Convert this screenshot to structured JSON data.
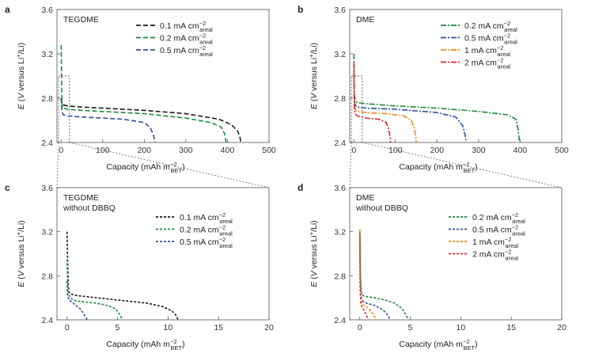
{
  "colors": {
    "black": "#1a1a1a",
    "green": "#1a8a3a",
    "blue": "#2f4f9e",
    "orange": "#f08a1c",
    "red": "#e0262e",
    "zoom_box": "#666666"
  },
  "axis_labels": {
    "y": "E (V versus Li⁺/Li)",
    "x_ab": "Capacity (mAh m⁻²BET)",
    "x_cd": "Capacity (mAh m⁻²BET)"
  },
  "chart_data": [
    {
      "panel": "a",
      "type": "line",
      "title": "TEGDME",
      "xlabel": "Capacity (mAh m-2 BET)",
      "ylabel": "E (V versus Li+/Li)",
      "xlim": [
        -10,
        500
      ],
      "ylim": [
        2.4,
        3.6
      ],
      "xticks": [
        0,
        100,
        200,
        300,
        400,
        500
      ],
      "yticks": [
        2.4,
        2.8,
        3.2,
        3.6
      ],
      "xtick_labels": [
        "0",
        "100",
        "200",
        "300",
        "400",
        "500"
      ],
      "ytick_labels": [
        "2.4",
        "2.8",
        "3.2",
        "3.6"
      ],
      "legend_position": "top-right",
      "series": [
        {
          "name": "0.1 mA cm-2 areal",
          "label_main": "0.1 mA cm",
          "label_sup": "−2",
          "label_sub": "areal",
          "color_key": "black",
          "dash": "long",
          "x": [
            0,
            2,
            5,
            15,
            50,
            100,
            200,
            300,
            380,
            410,
            425,
            430,
            431.5,
            432
          ],
          "y": [
            2.8,
            2.76,
            2.74,
            2.73,
            2.72,
            2.71,
            2.69,
            2.66,
            2.61,
            2.56,
            2.5,
            2.45,
            2.42,
            2.4
          ]
        },
        {
          "name": "0.2 mA cm-2 areal",
          "label_main": "0.2 mA cm",
          "label_sup": "−2",
          "label_sub": "areal",
          "color_key": "green",
          "dash": "long",
          "x": [
            0,
            1,
            2,
            5,
            15,
            50,
            100,
            200,
            300,
            360,
            385,
            393,
            396,
            397
          ],
          "y": [
            3.28,
            3.0,
            2.75,
            2.71,
            2.7,
            2.69,
            2.68,
            2.66,
            2.62,
            2.58,
            2.54,
            2.48,
            2.42,
            2.4
          ]
        },
        {
          "name": "0.5 mA cm-2 areal",
          "label_main": "0.5 mA cm",
          "label_sup": "−2",
          "label_sub": "areal",
          "color_key": "blue",
          "dash": "long",
          "x": [
            0,
            2,
            5,
            15,
            50,
            100,
            150,
            200,
            215,
            222,
            225,
            226
          ],
          "y": [
            2.8,
            2.68,
            2.65,
            2.64,
            2.63,
            2.62,
            2.61,
            2.58,
            2.53,
            2.47,
            2.42,
            2.4
          ]
        }
      ]
    },
    {
      "panel": "b",
      "type": "line",
      "title": "DME",
      "xlabel": "Capacity (mAh m-2 BET)",
      "ylabel": "E (V versus Li+/Li)",
      "xlim": [
        -10,
        500
      ],
      "ylim": [
        2.4,
        3.6
      ],
      "xticks": [
        0,
        100,
        200,
        300,
        400,
        500
      ],
      "yticks": [
        2.4,
        2.8,
        3.2,
        3.6
      ],
      "xtick_labels": [
        "0",
        "100",
        "200",
        "300",
        "400",
        "500"
      ],
      "ytick_labels": [
        "2.4",
        "2.8",
        "3.2",
        "3.6"
      ],
      "legend_position": "top-right",
      "series": [
        {
          "name": "0.2 mA cm-2 areal",
          "label_main": "0.2 mA cm",
          "label_sup": "−2",
          "label_sub": "areal",
          "color_key": "green",
          "dash": "dashdot",
          "x": [
            0,
            1,
            3,
            8,
            30,
            100,
            200,
            300,
            370,
            390,
            395,
            397,
            398
          ],
          "y": [
            3.2,
            2.85,
            2.78,
            2.76,
            2.75,
            2.73,
            2.71,
            2.68,
            2.65,
            2.61,
            2.52,
            2.45,
            2.4
          ]
        },
        {
          "name": "0.5 mA cm-2 areal",
          "label_main": "0.5 mA cm",
          "label_sup": "−2",
          "label_sub": "areal",
          "color_key": "blue",
          "dash": "dashdot",
          "x": [
            0,
            1,
            3,
            8,
            30,
            100,
            200,
            245,
            262,
            268,
            270
          ],
          "y": [
            3.05,
            2.8,
            2.74,
            2.72,
            2.71,
            2.7,
            2.67,
            2.63,
            2.55,
            2.46,
            2.4
          ]
        },
        {
          "name": "1 mA cm-2 areal",
          "label_main": "1 mA cm",
          "label_sup": "−2",
          "label_sub": "areal",
          "color_key": "orange",
          "dash": "dashdot",
          "x": [
            0,
            1,
            3,
            8,
            30,
            80,
            120,
            138,
            146,
            149,
            150
          ],
          "y": [
            3.1,
            2.76,
            2.7,
            2.68,
            2.67,
            2.66,
            2.64,
            2.6,
            2.52,
            2.44,
            2.4
          ]
        },
        {
          "name": "2 mA cm-2 areal",
          "label_main": "2 mA cm",
          "label_sup": "−2",
          "label_sub": "areal",
          "color_key": "red",
          "dash": "dashdot",
          "x": [
            0,
            1,
            3,
            8,
            30,
            60,
            78,
            84,
            87,
            88
          ],
          "y": [
            3.12,
            2.72,
            2.66,
            2.64,
            2.62,
            2.61,
            2.58,
            2.52,
            2.45,
            2.4
          ]
        }
      ]
    },
    {
      "panel": "c",
      "type": "line",
      "title": "TEGDME",
      "subtitle": "without DBBQ",
      "xlabel": "Capacity (mAh m-2 BET)",
      "ylabel": "E (V versus Li+/Li)",
      "xlim": [
        -1,
        20
      ],
      "ylim": [
        2.4,
        3.6
      ],
      "xticks": [
        0,
        5,
        10,
        15,
        20
      ],
      "yticks": [
        2.4,
        2.8,
        3.2,
        3.6
      ],
      "xtick_labels": [
        "0",
        "5",
        "10",
        "15",
        "20"
      ],
      "ytick_labels": [
        "2.4",
        "2.8",
        "3.2",
        "3.6"
      ],
      "legend_position": "top-right",
      "series": [
        {
          "name": "0.1 mA cm-2 areal",
          "label_main": "0.1 mA cm",
          "label_sup": "−2",
          "label_sub": "areal",
          "color_key": "black",
          "dash": "short",
          "x": [
            0,
            0.05,
            0.12,
            0.2,
            0.5,
            1,
            2,
            4,
            6,
            8,
            9.5,
            10.4,
            10.8,
            11
          ],
          "y": [
            3.2,
            2.95,
            2.72,
            2.65,
            2.63,
            2.62,
            2.61,
            2.59,
            2.57,
            2.55,
            2.52,
            2.48,
            2.44,
            2.4
          ]
        },
        {
          "name": "0.2 mA cm-2 areal",
          "label_main": "0.2 mA cm",
          "label_sup": "−2",
          "label_sub": "areal",
          "color_key": "green",
          "dash": "short",
          "x": [
            0,
            0.05,
            0.15,
            0.3,
            0.6,
            1,
            2,
            3,
            4,
            4.8,
            5.2,
            5.5
          ],
          "y": [
            2.95,
            2.75,
            2.65,
            2.6,
            2.58,
            2.57,
            2.56,
            2.55,
            2.53,
            2.5,
            2.45,
            2.4
          ]
        },
        {
          "name": "0.5 mA cm-2 areal",
          "label_main": "0.5 mA cm",
          "label_sup": "−2",
          "label_sub": "areal",
          "color_key": "blue",
          "dash": "short",
          "x": [
            0,
            0.05,
            0.2,
            0.5,
            0.9,
            1.3,
            1.6,
            1.8,
            2.0
          ],
          "y": [
            2.75,
            2.62,
            2.58,
            2.56,
            2.53,
            2.5,
            2.46,
            2.43,
            2.4
          ]
        }
      ]
    },
    {
      "panel": "d",
      "type": "line",
      "title": "DME",
      "subtitle": "without DBBQ",
      "xlabel": "Capacity (mAh m-2 BET)",
      "ylabel": "E (V versus Li+/Li)",
      "xlim": [
        -1,
        20
      ],
      "ylim": [
        2.4,
        3.6
      ],
      "xticks": [
        0,
        5,
        10,
        15,
        20
      ],
      "yticks": [
        2.4,
        2.8,
        3.2,
        3.6
      ],
      "xtick_labels": [
        "0",
        "5",
        "10",
        "15",
        "20"
      ],
      "ytick_labels": [
        "2.4",
        "2.8",
        "3.2",
        "3.6"
      ],
      "legend_position": "top-right",
      "series": [
        {
          "name": "0.2 mA cm-2 areal",
          "label_main": "0.2 mA cm",
          "label_sup": "−2",
          "label_sub": "areal",
          "color_key": "green",
          "dash": "short",
          "x": [
            0,
            0.05,
            0.15,
            0.3,
            0.7,
            1.5,
            2.5,
            3.5,
            4.2,
            4.6,
            4.8
          ],
          "y": [
            3.2,
            2.8,
            2.65,
            2.62,
            2.61,
            2.6,
            2.58,
            2.55,
            2.5,
            2.44,
            2.4
          ]
        },
        {
          "name": "0.5 mA cm-2 areal",
          "label_main": "0.5 mA cm",
          "label_sup": "−2",
          "label_sub": "areal",
          "color_key": "blue",
          "dash": "short",
          "x": [
            0,
            0.05,
            0.15,
            0.3,
            0.7,
            1.5,
            2.3,
            2.8,
            3.0
          ],
          "y": [
            3.15,
            2.75,
            2.6,
            2.57,
            2.55,
            2.53,
            2.49,
            2.44,
            2.4
          ]
        },
        {
          "name": "1 mA cm-2 areal",
          "label_main": "1 mA cm",
          "label_sup": "−2",
          "label_sub": "areal",
          "color_key": "orange",
          "dash": "short",
          "x": [
            0,
            0.05,
            0.15,
            0.3,
            0.6,
            1.0,
            1.4,
            1.6
          ],
          "y": [
            3.22,
            2.75,
            2.58,
            2.54,
            2.52,
            2.49,
            2.44,
            2.4
          ]
        },
        {
          "name": "2 mA cm-2 areal",
          "label_main": "2 mA cm",
          "label_sup": "−2",
          "label_sub": "areal",
          "color_key": "red",
          "dash": "short",
          "x": [
            0,
            0.03,
            0.1,
            0.2,
            0.4,
            0.6,
            0.75,
            0.8
          ],
          "y": [
            3.18,
            2.7,
            2.55,
            2.52,
            2.49,
            2.45,
            2.42,
            2.4
          ]
        }
      ]
    }
  ]
}
